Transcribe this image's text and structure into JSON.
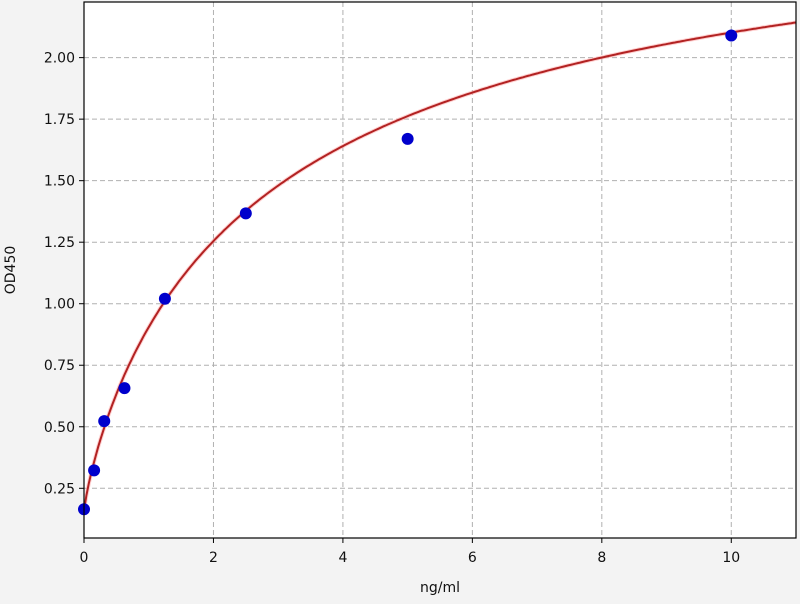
{
  "chart_data": {
    "type": "scatter",
    "title": "",
    "xlabel": "ng/ml",
    "ylabel": "OD450",
    "xlim": [
      0,
      11
    ],
    "ylim": [
      0.048,
      2.226
    ],
    "xticks": [
      0,
      2,
      4,
      6,
      8,
      10
    ],
    "xtick_labels": [
      "0",
      "2",
      "4",
      "6",
      "8",
      "10"
    ],
    "yticks": [
      0.25,
      0.5,
      0.75,
      1.0,
      1.25,
      1.5,
      1.75,
      2.0
    ],
    "ytick_labels": [
      "0.25",
      "0.50",
      "0.75",
      "1.00",
      "1.25",
      "1.50",
      "1.75",
      "2.00"
    ],
    "grid": true,
    "series": [
      {
        "kind": "points",
        "color": "#0000cc",
        "x": [
          0,
          0.156,
          0.3125,
          0.625,
          1.25,
          2.5,
          5,
          10
        ],
        "y": [
          0.165,
          0.323,
          0.523,
          0.657,
          1.02,
          1.367,
          1.67,
          2.09
        ]
      },
      {
        "kind": "fit-curve",
        "color": "#b22222"
      }
    ]
  }
}
